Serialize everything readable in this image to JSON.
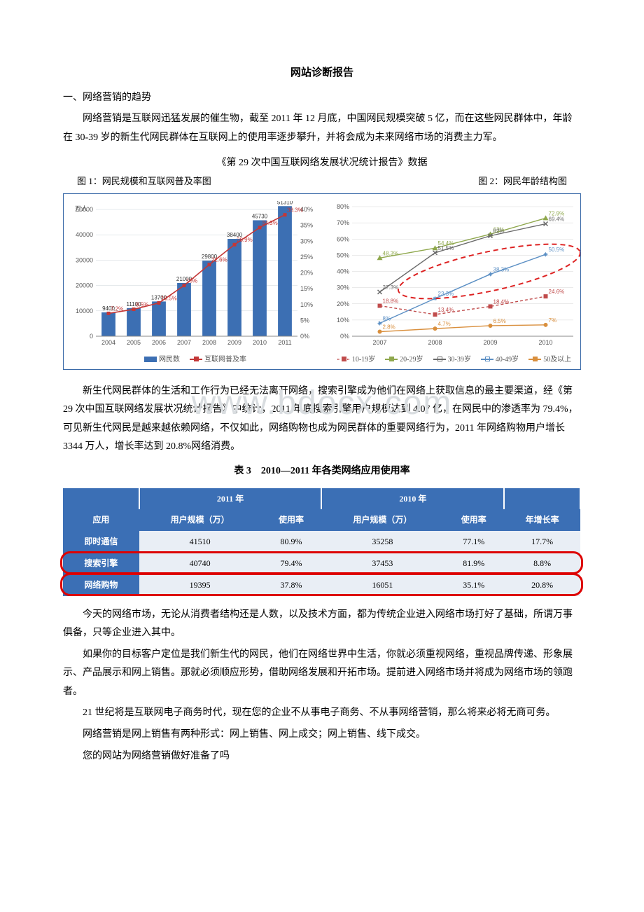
{
  "title": "网站诊断报告",
  "section1_heading": "一、网络营销的趋势",
  "p1": "网络营销是互联网迅猛发展的催生物，截至 2011 年 12 月底，中国网民规模突破 5 亿，而在这些网民群体中，年龄在 30-39 岁的新生代网民群体在互联网上的使用率逐步攀升，并将会成为未来网络市场的消费主力军。",
  "source_caption": "《第 29 次中国互联网络发展状况统计报告》数据",
  "fig1_label": "图 1：网民规模和互联网普及率图",
  "fig2_label": "图 2：网民年龄结构图",
  "chart1": {
    "type": "bar+line",
    "y1_unit": "万人",
    "y1_max": 50000,
    "y1_step": 10000,
    "y2_max": 40,
    "y2_step": 5,
    "y2_unit": "%",
    "categories": [
      "2004",
      "2005",
      "2006",
      "2007",
      "2008",
      "2009",
      "2010",
      "2011"
    ],
    "bar_values": [
      9400,
      11100,
      13700,
      21000,
      29800,
      38400,
      45730,
      51310
    ],
    "line_values": [
      7.2,
      8.5,
      10.5,
      16.0,
      22.6,
      28.9,
      34.3,
      38.3
    ],
    "bar_color": "#3c6fb3",
    "line_color": "#c33737",
    "grid_color": "#cdd4da",
    "legend": [
      "网民数",
      "互联网普及率"
    ],
    "axis_font": 9
  },
  "chart2": {
    "type": "line-multi",
    "y_max": 80,
    "y_step": 10,
    "y_unit": "%",
    "categories": [
      "2007",
      "2008",
      "2009",
      "2010"
    ],
    "series": [
      {
        "name": "10-19岁",
        "color": "#c04b4b",
        "marker": "square",
        "dash": "4 3",
        "values": [
          18.8,
          13.4,
          18.4,
          24.6
        ]
      },
      {
        "name": "20-29岁",
        "color": "#8fa84d",
        "marker": "triangle",
        "values": [
          48.3,
          54.4,
          63.0,
          72.9
        ]
      },
      {
        "name": "30-39岁",
        "color": "#6a6a6a",
        "marker": "x",
        "values": [
          27.3,
          51.5,
          62.0,
          69.4
        ]
      },
      {
        "name": "40-49岁",
        "color": "#5b8fc4",
        "marker": "star",
        "values": [
          8.0,
          23.3,
          38.3,
          50.5
        ]
      },
      {
        "name": "50及以上",
        "color": "#d98f3d",
        "marker": "circle",
        "values": [
          2.8,
          4.7,
          6.5,
          7.0
        ]
      }
    ],
    "labels_top": {
      "2007": "48.3%",
      "2008": "54.4%",
      "2009": "63.0%",
      "2010": "72.9%"
    },
    "grid_color": "#d6d6d6",
    "ellipse_color": "#d22",
    "axis_font": 9
  },
  "p2": "新生代网民群体的生活和工作行为已经无法离开网络，搜索引擎成为他们在网络上获取信息的最主要渠道，经《第 29 次中国互联网络发展状况统计报告》中统计，2011 年底搜索引擎用户规模达到 4.07 亿，在网民中的渗透率为 79.4%，可见新生代网民是越来越依赖网络，不仅如此，网络购物也成为网民群体的重要网络行为，2011 年网络购物用户增长 3344 万人，增长率达到 20.8%网络消费。",
  "table_caption": "表 3　2010—2011 年各类网络应用使用率",
  "table": {
    "header_groups": [
      "",
      "2011 年",
      "2010 年",
      ""
    ],
    "columns": [
      "应用",
      "用户规模（万）",
      "使用率",
      "用户规模（万）",
      "使用率",
      "年增长率"
    ],
    "rows": [
      [
        "即时通信",
        "41510",
        "80.9%",
        "35258",
        "77.1%",
        "17.7%"
      ],
      [
        "搜索引擎",
        "40740",
        "79.4%",
        "37453",
        "81.9%",
        "8.8%"
      ],
      [
        "网络购物",
        "19395",
        "37.8%",
        "16051",
        "35.1%",
        "20.8%"
      ]
    ],
    "header_bg": "#3b6fb5",
    "cell_bg": "#e9eef5",
    "highlight_rows": [
      1,
      2
    ],
    "highlight_color": "#d00000"
  },
  "p3": "今天的网络市场，无论从消费者结构还是人数，以及技术方面，都为传统企业进入网络市场打好了基础，所谓万事俱备，只等企业进入其中。",
  "p4": "如果你的目标客户定位是我们新生代的网民，他们在网络世界中生活，你就必须重视网络，重视品牌传递、形象展示、产品展示和网上销售。那就必须顺应形势，借助网络发展和开拓市场。提前进入网络市场并将成为网络市场的领跑者。",
  "p5": "21 世纪将是互联网电子商务时代，现在您的企业不从事电子商务、不从事网络营销，那么将来必将无商可务。",
  "p6": "网络营销是网上销售有两种形式：网上销售、网上成交；网上销售、线下成交。",
  "p7": "您的网站为网络营销做好准备了吗",
  "watermark": "www.bdocx.com"
}
